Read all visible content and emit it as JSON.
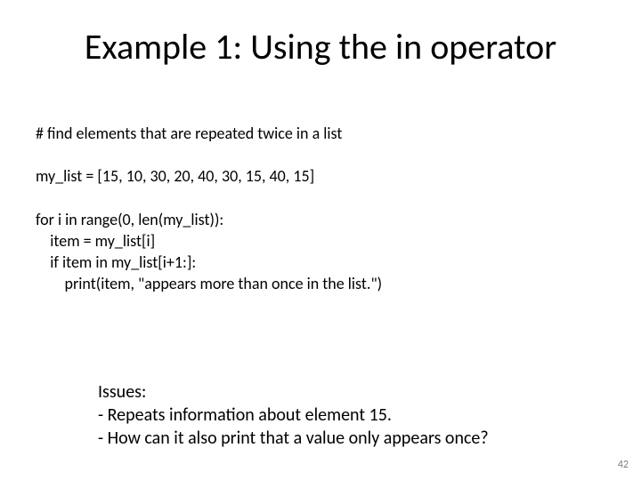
{
  "title": "Example 1: Using the in operator",
  "code": {
    "l1": "# find elements that are repeated twice in a list",
    "l2": "my_list = [15, 10, 30, 20, 40, 30, 15, 40, 15]",
    "l3": "for i in range(0, len(my_list)):",
    "l4": "    item = my_list[i]",
    "l5": "    if item in my_list[i+1:]:",
    "l6": "        print(item, \"appears more than once in the list.\")"
  },
  "issues": {
    "heading": "Issues:",
    "item1": "-  Repeats information about element 15.",
    "item2": "-  How can it also print that a value only appears once?"
  },
  "page_number": "42",
  "style": {
    "slide_width": 720,
    "slide_height": 540,
    "background_color": "#ffffff",
    "text_color": "#000000",
    "title_fontsize": 40,
    "body_fontsize": 18,
    "issues_fontsize": 20,
    "pagenum_fontsize": 12,
    "pagenum_color": "#808080",
    "font_family": "Calibri"
  }
}
